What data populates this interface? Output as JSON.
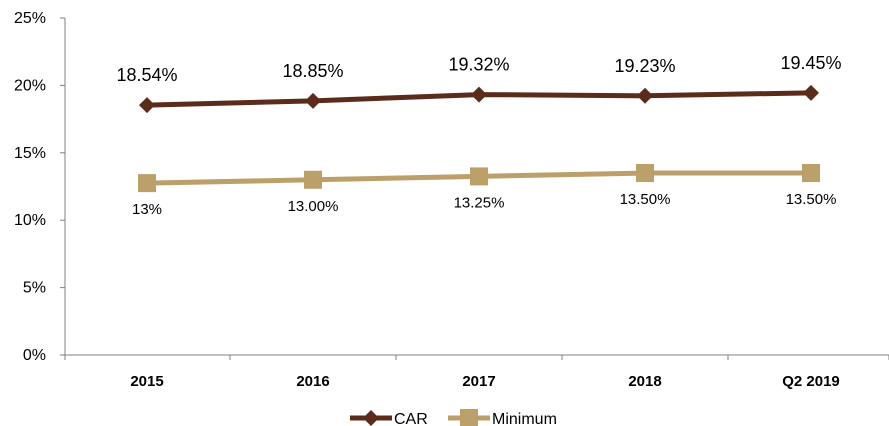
{
  "chart_data": {
    "type": "line",
    "categories": [
      "2015",
      "2016",
      "2017",
      "2018",
      "Q2 2019"
    ],
    "ylim": [
      0,
      25
    ],
    "yticks": [
      0,
      5,
      10,
      15,
      20,
      25
    ],
    "ytick_labels": [
      "0%",
      "5%",
      "10%",
      "15%",
      "20%",
      "25%"
    ],
    "grid": false,
    "legend_position": "bottom",
    "series": [
      {
        "name": "CAR",
        "values": [
          18.54,
          18.85,
          19.32,
          19.23,
          19.45
        ],
        "labels": [
          "18.54%",
          "18.85%",
          "19.32%",
          "19.23%",
          "19.45%"
        ],
        "color": "#5b2c1b",
        "marker": "diamond",
        "label_position": "above"
      },
      {
        "name": "Minimum",
        "values": [
          12.75,
          13.0,
          13.25,
          13.5,
          13.5
        ],
        "labels": [
          "13%",
          "13.00%",
          "13.25%",
          "13.50%",
          "13.50%"
        ],
        "color": "#bba06a",
        "marker": "square",
        "label_position": "below"
      }
    ]
  }
}
